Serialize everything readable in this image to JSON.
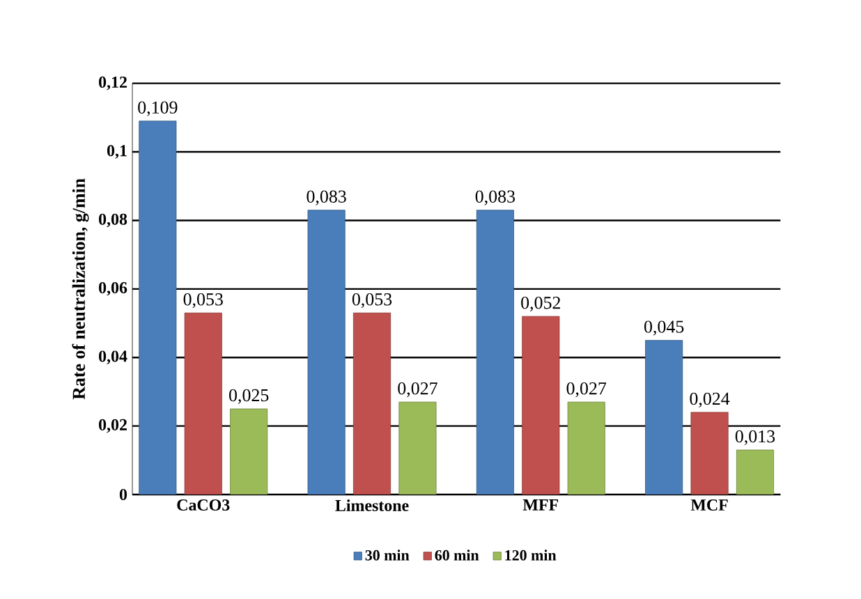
{
  "chart_data": {
    "type": "bar",
    "ylabel": "Rate of neutralization,  g/min",
    "categories": [
      "CaCO3",
      "Limestone",
      "MFF",
      "MCF"
    ],
    "series": [
      {
        "name": "30 min",
        "color": "#4a7ebb",
        "values": [
          0.109,
          0.083,
          0.083,
          0.045
        ],
        "value_labels": [
          "0,109",
          "0,083",
          "0,083",
          "0,045"
        ]
      },
      {
        "name": "60 min",
        "color": "#c0504d",
        "values": [
          0.053,
          0.053,
          0.052,
          0.024
        ],
        "value_labels": [
          "0,053",
          "0,053",
          "0,052",
          "0,024"
        ]
      },
      {
        "name": "120 min",
        "color": "#9bbb59",
        "values": [
          0.025,
          0.027,
          0.027,
          0.013
        ],
        "value_labels": [
          "0,025",
          "0,027",
          "0,027",
          "0,013"
        ]
      }
    ],
    "ylim": [
      0,
      0.12
    ],
    "yticks": [
      {
        "value": 0,
        "label": "0"
      },
      {
        "value": 0.02,
        "label": "0,02"
      },
      {
        "value": 0.04,
        "label": "0,04"
      },
      {
        "value": 0.06,
        "label": "0,06"
      },
      {
        "value": 0.08,
        "label": "0,08"
      },
      {
        "value": 0.1,
        "label": "0,1"
      },
      {
        "value": 0.12,
        "label": "0,12"
      }
    ],
    "grid": "y",
    "legend": "bottom"
  }
}
